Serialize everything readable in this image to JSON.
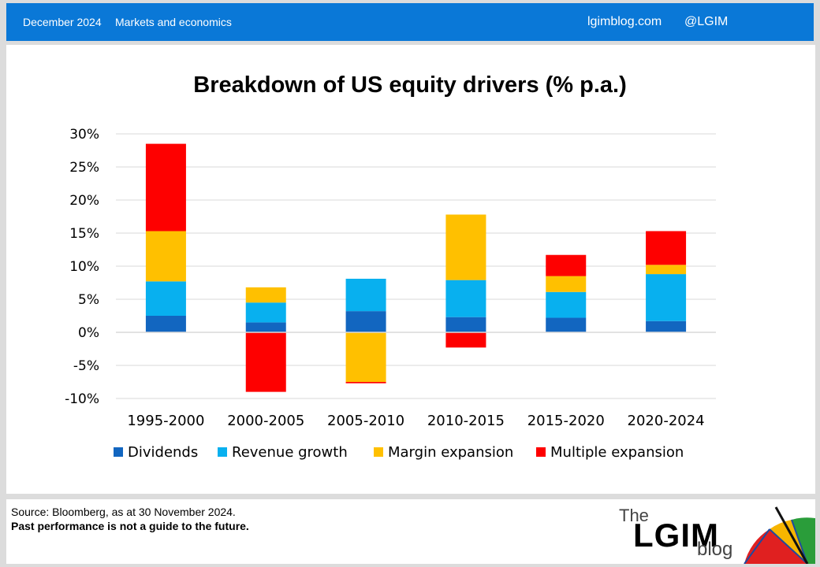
{
  "header": {
    "date": "December 2024",
    "category": "Markets and economics",
    "site": "lgimblog.com",
    "handle": "@LGIM"
  },
  "footer": {
    "source": "Source: Bloomberg, as at 30 November 2024.",
    "disclaimer": "Past performance is not a guide to the future."
  },
  "logo": {
    "the": "The",
    "name": "LGIM",
    "blog": "blog"
  },
  "colors": {
    "header_bg": "#0a78d7",
    "dividends": "#1266c0",
    "revenue": "#08b0ef",
    "margin": "#ffc000",
    "multiple": "#fe0000"
  },
  "chart_data": {
    "type": "bar",
    "stacked": true,
    "title": "Breakdown of US equity drivers (% p.a.)",
    "xlabel": "",
    "ylabel": "",
    "ylim": [
      -10,
      30
    ],
    "yticks": [
      30,
      25,
      20,
      15,
      10,
      5,
      0,
      -5,
      -10
    ],
    "ytick_labels": [
      "30%",
      "25%",
      "20%",
      "15%",
      "10%",
      "5%",
      "0%",
      "-5%",
      "-10%"
    ],
    "grid": true,
    "legend_position": "bottom",
    "categories": [
      "1995-2000",
      "2000-2005",
      "2005-2010",
      "2010-2015",
      "2015-2020",
      "2020-2024"
    ],
    "series": [
      {
        "name": "Dividends",
        "color": "#1266c0",
        "values": [
          2.5,
          1.5,
          3.2,
          2.3,
          2.2,
          1.7
        ]
      },
      {
        "name": "Revenue growth",
        "color": "#08b0ef",
        "values": [
          5.2,
          3.0,
          4.9,
          5.6,
          3.9,
          7.1
        ]
      },
      {
        "name": "Margin expansion",
        "color": "#ffc000",
        "values": [
          7.6,
          2.3,
          -7.5,
          9.9,
          2.4,
          1.4
        ]
      },
      {
        "name": "Multiple expansion",
        "color": "#fe0000",
        "values": [
          13.2,
          -9.0,
          -0.2,
          -2.3,
          3.2,
          5.1
        ]
      }
    ]
  }
}
